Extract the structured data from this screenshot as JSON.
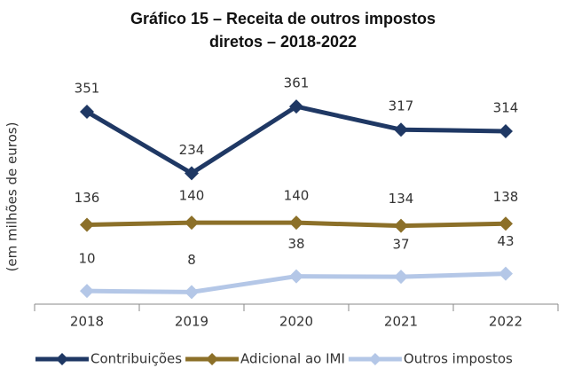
{
  "chart_data": {
    "type": "line",
    "title": "Gráfico 15 – Receita de outros impostos diretos – 2018-2022",
    "y_label": "(em milhões de euros)",
    "categories": [
      "2018",
      "2019",
      "2020",
      "2021",
      "2022"
    ],
    "series": [
      {
        "name": "Contribuições",
        "color": "#1f3864",
        "values": [
          351,
          234,
          361,
          317,
          314
        ]
      },
      {
        "name": "Adicional ao IMI",
        "color": "#8c7029",
        "values": [
          136,
          140,
          140,
          134,
          138
        ]
      },
      {
        "name": "Outros impostos",
        "color": "#b4c7e7",
        "values": [
          10,
          8,
          38,
          37,
          43
        ]
      }
    ],
    "ylim": [
      -15,
      400
    ]
  }
}
